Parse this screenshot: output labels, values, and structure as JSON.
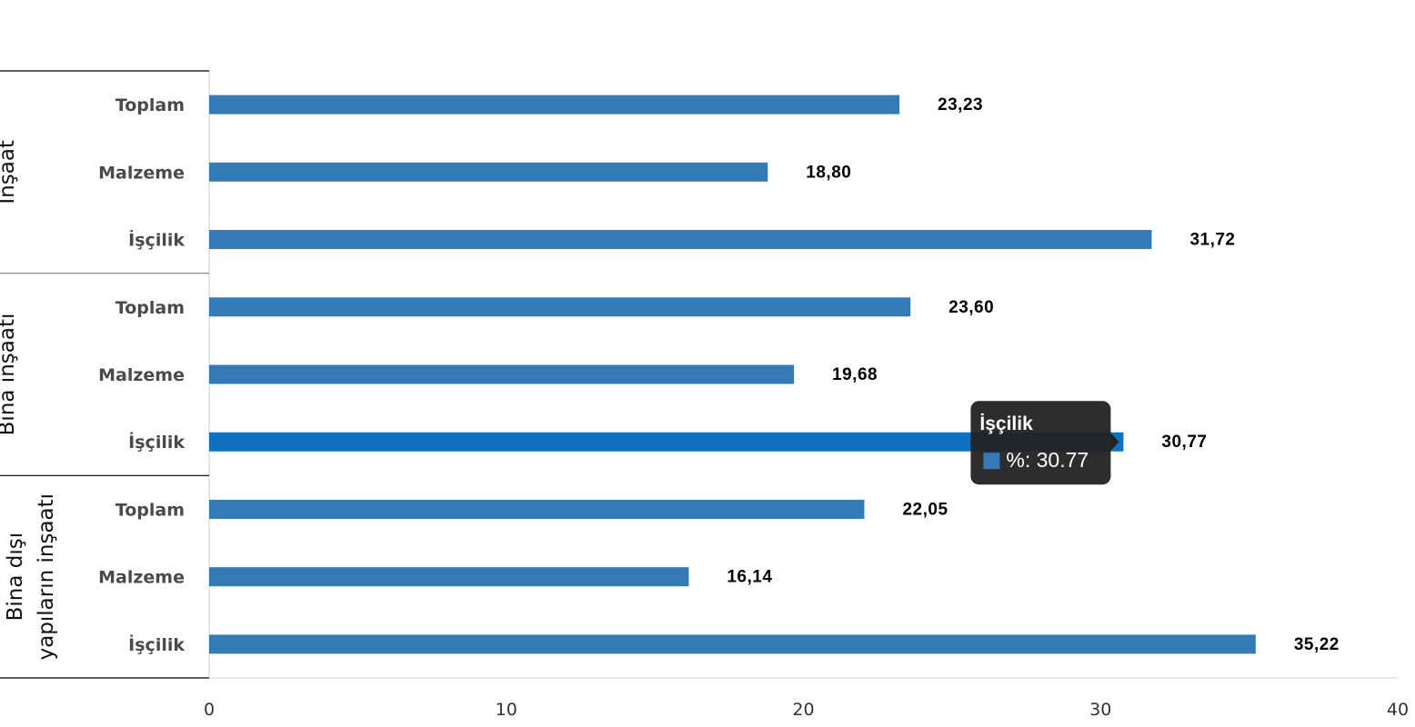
{
  "chart_data": {
    "type": "bar",
    "orientation": "horizontal",
    "groups": [
      {
        "name": "İnşaat",
        "categories": [
          "Toplam",
          "Malzeme",
          "İşçilik"
        ],
        "values": [
          23.23,
          18.8,
          31.72
        ],
        "value_labels": [
          "23,23",
          "18,80",
          "31,72"
        ]
      },
      {
        "name": "Bina inşaatı",
        "categories": [
          "Toplam",
          "Malzeme",
          "İşçilik"
        ],
        "values": [
          23.6,
          19.68,
          30.77
        ],
        "value_labels": [
          "23,60",
          "19,68",
          "30,77"
        ]
      },
      {
        "name": "Bina dışı yapıların inşaatı",
        "name_lines": [
          "Bina dışı",
          "yapıların inşaatı"
        ],
        "categories": [
          "Toplam",
          "Malzeme",
          "İşçilik"
        ],
        "values": [
          22.05,
          16.14,
          35.22
        ],
        "value_labels": [
          "22,05",
          "16,14",
          "35,22"
        ]
      }
    ],
    "x_ticks": [
      "0",
      "10",
      "20",
      "30",
      "40"
    ],
    "xlim": [
      0,
      40
    ],
    "bar_color": "#337ab7",
    "highlight_color": "#1071c0",
    "grid": false,
    "legend": "none"
  },
  "tooltip": {
    "title": "İşçilik",
    "text": "%: 30.77",
    "group_index": 1,
    "category_index": 2,
    "background": "#222222"
  }
}
